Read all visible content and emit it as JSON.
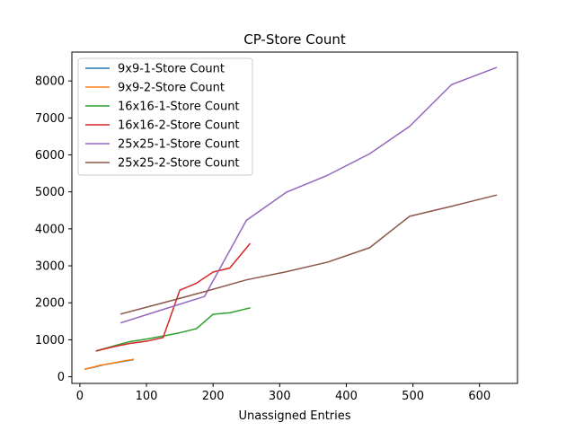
{
  "chart_data": {
    "type": "line",
    "title": "CP-Store Count",
    "xlabel": "Unassigned Entries",
    "ylabel": "",
    "xlim": [
      -12,
      657
    ],
    "ylim": [
      -180,
      8780
    ],
    "xticks": [
      0,
      100,
      200,
      300,
      400,
      500,
      600
    ],
    "yticks": [
      0,
      1000,
      2000,
      3000,
      4000,
      5000,
      6000,
      7000,
      8000
    ],
    "grid": false,
    "legend_position": "upper-left",
    "series": [
      {
        "name": "9x9-1-Store Count",
        "color": "#1f77b4",
        "x": [
          8,
          20,
          30,
          40,
          50,
          60,
          70,
          80
        ],
        "y": [
          210,
          250,
          300,
          340,
          370,
          400,
          430,
          460
        ]
      },
      {
        "name": "9x9-2-Store Count",
        "color": "#ff7f0e",
        "x": [
          8,
          20,
          30,
          40,
          50,
          60,
          70,
          80
        ],
        "y": [
          210,
          260,
          310,
          340,
          370,
          410,
          440,
          470
        ]
      },
      {
        "name": "16x16-1-Store Count",
        "color": "#2ca02c",
        "x": [
          25,
          50,
          75,
          100,
          125,
          150,
          175,
          200,
          225,
          255
        ],
        "y": [
          700,
          830,
          950,
          1020,
          1100,
          1190,
          1300,
          1690,
          1730,
          1860
        ]
      },
      {
        "name": "16x16-2-Store Count",
        "color": "#d62728",
        "x": [
          25,
          50,
          75,
          100,
          125,
          150,
          175,
          200,
          225,
          255
        ],
        "y": [
          700,
          810,
          900,
          960,
          1060,
          2340,
          2530,
          2830,
          2940,
          3590
        ]
      },
      {
        "name": "25x25-1-Store Count",
        "color": "#9467bd",
        "x": [
          62,
          125,
          187,
          250,
          310,
          372,
          435,
          495,
          558,
          625
        ],
        "y": [
          1460,
          1820,
          2170,
          4230,
          4990,
          5450,
          6030,
          6770,
          7900,
          8360
        ]
      },
      {
        "name": "25x25-2-Store Count",
        "color": "#8c564b",
        "x": [
          62,
          125,
          187,
          250,
          310,
          372,
          435,
          495,
          558,
          625
        ],
        "y": [
          1700,
          2000,
          2300,
          2620,
          2840,
          3100,
          3490,
          4340,
          4610,
          4910
        ]
      }
    ]
  }
}
